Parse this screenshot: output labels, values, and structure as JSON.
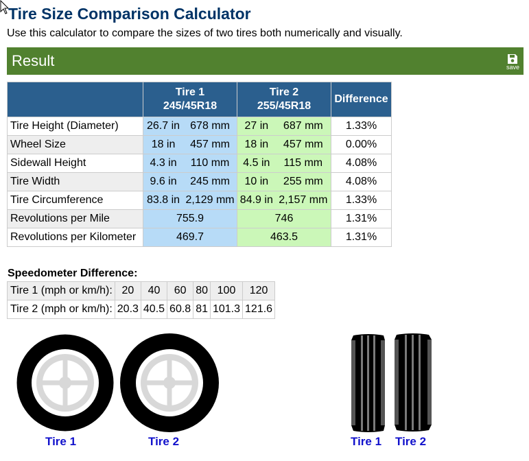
{
  "page": {
    "title": "Tire Size Comparison Calculator",
    "intro": "Use this calculator to compare the sizes of two tires both numerically and visually."
  },
  "result_bar": {
    "title": "Result",
    "save_label": "save",
    "save_icon": "floppy-disk-icon"
  },
  "result_table": {
    "headers": {
      "tire1_name": "Tire 1",
      "tire1_size": "245/45R18",
      "tire2_name": "Tire 2",
      "tire2_size": "255/45R18",
      "difference": "Difference"
    },
    "rows": [
      {
        "label": "Tire Height (Diameter)",
        "t1_in": "26.7 in",
        "t1_mm": "678 mm",
        "t2_in": "27 in",
        "t2_mm": "687 mm",
        "diff": "1.33%"
      },
      {
        "label": "Wheel Size",
        "t1_in": "18 in",
        "t1_mm": "457 mm",
        "t2_in": "18 in",
        "t2_mm": "457 mm",
        "diff": "0.00%"
      },
      {
        "label": "Sidewall Height",
        "t1_in": "4.3 in",
        "t1_mm": "110 mm",
        "t2_in": "4.5 in",
        "t2_mm": "115 mm",
        "diff": "4.08%"
      },
      {
        "label": "Tire Width",
        "t1_in": "9.6 in",
        "t1_mm": "245 mm",
        "t2_in": "10 in",
        "t2_mm": "255 mm",
        "diff": "4.08%"
      },
      {
        "label": "Tire Circumference",
        "t1_in": "83.8 in",
        "t1_mm": "2,129 mm",
        "t2_in": "84.9 in",
        "t2_mm": "2,157 mm",
        "diff": "1.33%"
      }
    ],
    "rev_rows": [
      {
        "label": "Revolutions per Mile",
        "t1": "755.9",
        "t2": "746",
        "diff": "1.31%"
      },
      {
        "label": "Revolutions per Kilometer",
        "t1": "469.7",
        "t2": "463.5",
        "diff": "1.31%"
      }
    ]
  },
  "speedometer": {
    "title": "Speedometer Difference:",
    "tire1_label": "Tire 1 (mph or km/h):",
    "tire2_label": "Tire 2 (mph or km/h):",
    "tire1_values": [
      "20",
      "40",
      "60",
      "80",
      "100",
      "120"
    ],
    "tire2_values": [
      "20.3",
      "40.5",
      "60.8",
      "81",
      "101.3",
      "121.6"
    ]
  },
  "visual": {
    "side_labels": [
      "Tire 1",
      "Tire 2"
    ],
    "tread_labels": [
      "Tire 1",
      "Tire 2"
    ],
    "label_color": "#1111cc"
  },
  "colors": {
    "title": "#003366",
    "result_bar": "#51812f",
    "header": "#2b5f8e",
    "tire1_cell": "#b7dbf7",
    "tire2_cell": "#cbf7b8"
  }
}
